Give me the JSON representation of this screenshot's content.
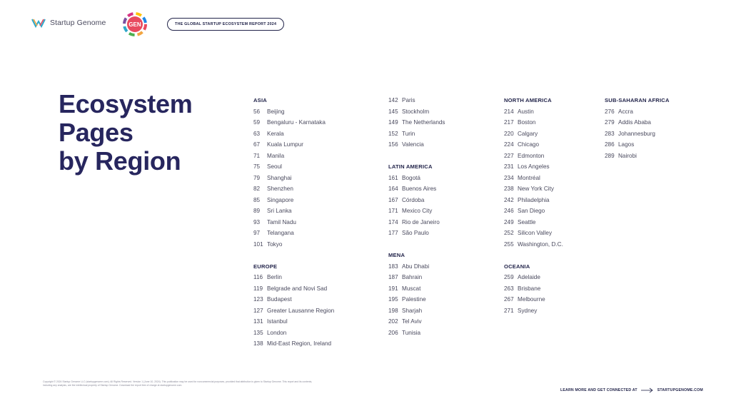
{
  "header": {
    "brand_name": "Startup Genome",
    "gen_label": "GEN",
    "report_title": "THE GLOBAL STARTUP ECOSYSTEM REPORT 2024"
  },
  "title": {
    "line1": "Ecosystem",
    "line2": "Pages",
    "line3": "by Region"
  },
  "columns": [
    {
      "blocks": [
        {
          "heading": "ASIA",
          "items": [
            {
              "page": "56",
              "name": "Beijing"
            },
            {
              "page": "59",
              "name": "Bengaluru - Karnataka"
            },
            {
              "page": "63",
              "name": "Kerala"
            },
            {
              "page": "67",
              "name": "Kuala Lumpur"
            },
            {
              "page": "71",
              "name": "Manila"
            },
            {
              "page": "75",
              "name": "Seoul"
            },
            {
              "page": "79",
              "name": "Shanghai"
            },
            {
              "page": "82",
              "name": "Shenzhen"
            },
            {
              "page": "85",
              "name": "Singapore"
            },
            {
              "page": "89",
              "name": "Sri Lanka"
            },
            {
              "page": "93",
              "name": "Tamil Nadu"
            },
            {
              "page": "97",
              "name": "Telangana"
            },
            {
              "page": "101",
              "name": "Tokyo"
            }
          ]
        },
        {
          "heading": "EUROPE",
          "items": [
            {
              "page": "116",
              "name": "Berlin"
            },
            {
              "page": "119",
              "name": "Belgrade and Novi Sad"
            },
            {
              "page": "123",
              "name": "Budapest"
            },
            {
              "page": "127",
              "name": "Greater Lausanne Region"
            },
            {
              "page": "131",
              "name": "Istanbul"
            },
            {
              "page": "135",
              "name": "London"
            },
            {
              "page": "138",
              "name": "Mid-East Region, Ireland"
            }
          ]
        }
      ]
    },
    {
      "blocks": [
        {
          "heading": "",
          "items": [
            {
              "page": "142",
              "name": "Paris"
            },
            {
              "page": "145",
              "name": "Stockholm"
            },
            {
              "page": "149",
              "name": "The Netherlands"
            },
            {
              "page": "152",
              "name": "Turin"
            },
            {
              "page": "156",
              "name": "Valencia"
            }
          ]
        },
        {
          "heading": "LATIN AMERICA",
          "items": [
            {
              "page": "161",
              "name": "Bogotá"
            },
            {
              "page": "164",
              "name": "Buenos Aires"
            },
            {
              "page": "167",
              "name": "Córdoba"
            },
            {
              "page": "171",
              "name": "Mexico City"
            },
            {
              "page": "174",
              "name": "Rio de Janeiro"
            },
            {
              "page": "177",
              "name": "São Paulo"
            }
          ]
        },
        {
          "heading": "MENA",
          "items": [
            {
              "page": "183",
              "name": "Abu Dhabi"
            },
            {
              "page": "187",
              "name": "Bahrain"
            },
            {
              "page": "191",
              "name": "Muscat"
            },
            {
              "page": "195",
              "name": "Palestine"
            },
            {
              "page": "198",
              "name": "Sharjah"
            },
            {
              "page": "202",
              "name": "Tel Aviv"
            },
            {
              "page": "206",
              "name": "Tunisia"
            }
          ]
        }
      ]
    },
    {
      "blocks": [
        {
          "heading": "NORTH AMERICA",
          "items": [
            {
              "page": "214",
              "name": "Austin"
            },
            {
              "page": "217",
              "name": "Boston"
            },
            {
              "page": "220",
              "name": "Calgary"
            },
            {
              "page": "224",
              "name": "Chicago"
            },
            {
              "page": "227",
              "name": "Edmonton"
            },
            {
              "page": "231",
              "name": "Los Angeles"
            },
            {
              "page": "234",
              "name": "Montréal"
            },
            {
              "page": "238",
              "name": "New York City"
            },
            {
              "page": "242",
              "name": "Philadelphia"
            },
            {
              "page": "246",
              "name": "San Diego"
            },
            {
              "page": "249",
              "name": "Seattle"
            },
            {
              "page": "252",
              "name": "Silicon Valley"
            },
            {
              "page": "255",
              "name": "Washington, D.C."
            }
          ]
        },
        {
          "heading": "OCEANIA",
          "items": [
            {
              "page": "259",
              "name": "Adelaide"
            },
            {
              "page": "263",
              "name": "Brisbane"
            },
            {
              "page": "267",
              "name": "Melbourne"
            },
            {
              "page": "271",
              "name": "Sydney"
            }
          ]
        }
      ]
    },
    {
      "blocks": [
        {
          "heading": "SUB-SAHARAN AFRICA",
          "items": [
            {
              "page": "276",
              "name": "Accra"
            },
            {
              "page": "279",
              "name": "Addis Ababa"
            },
            {
              "page": "283",
              "name": "Johannesburg"
            },
            {
              "page": "286",
              "name": "Lagos"
            },
            {
              "page": "289",
              "name": "Nairobi"
            }
          ]
        }
      ]
    }
  ],
  "footer": {
    "copyright": "Copyright © 2024 Startup Genome LLC (startupgenome.com). All Rights Reserved. Version 1 (June 10, 2024). This publication may be used for noncommercial purposes, provided that attribution is given to Startup Genome. This report and its contents, including any analysis, are the intellectual property of Startup Genome. Download the report free of charge at startupgenome.com.",
    "learn_more": "LEARN MORE AND GET CONNECTED AT",
    "site": "STARTUPGENOME.COM"
  },
  "colors": {
    "title": "#27265e",
    "text": "#4a4a5e",
    "heading": "#22244a"
  }
}
